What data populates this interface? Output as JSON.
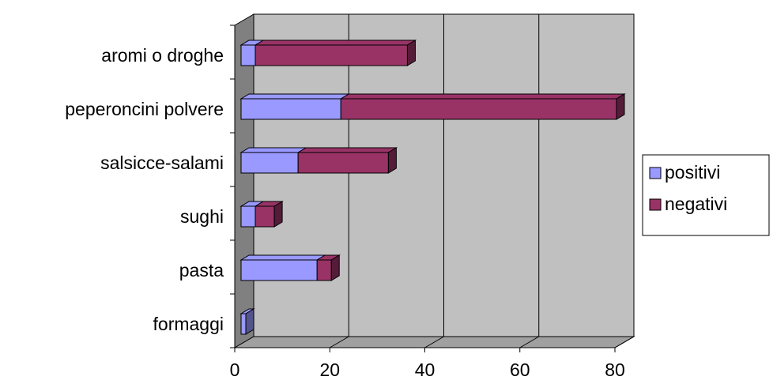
{
  "chart_data": {
    "type": "bar",
    "orientation": "horizontal",
    "stacked": true,
    "three_d": true,
    "categories": [
      "aromi o droghe",
      "peperoncini polvere",
      "salsicce-salami",
      "sughi",
      "pasta",
      "formaggi"
    ],
    "series": [
      {
        "name": "positivi",
        "values": [
          3,
          21,
          12,
          3,
          16,
          1
        ],
        "color": "#9999ff"
      },
      {
        "name": "negativi",
        "values": [
          32,
          58,
          19,
          4,
          3,
          0
        ],
        "color": "#993366"
      }
    ],
    "xticks": [
      "0",
      "20",
      "40",
      "60",
      "80"
    ],
    "xlim": [
      0,
      80
    ],
    "grid": true,
    "legend_position": "right",
    "wall_color": "#c0c0c0"
  }
}
